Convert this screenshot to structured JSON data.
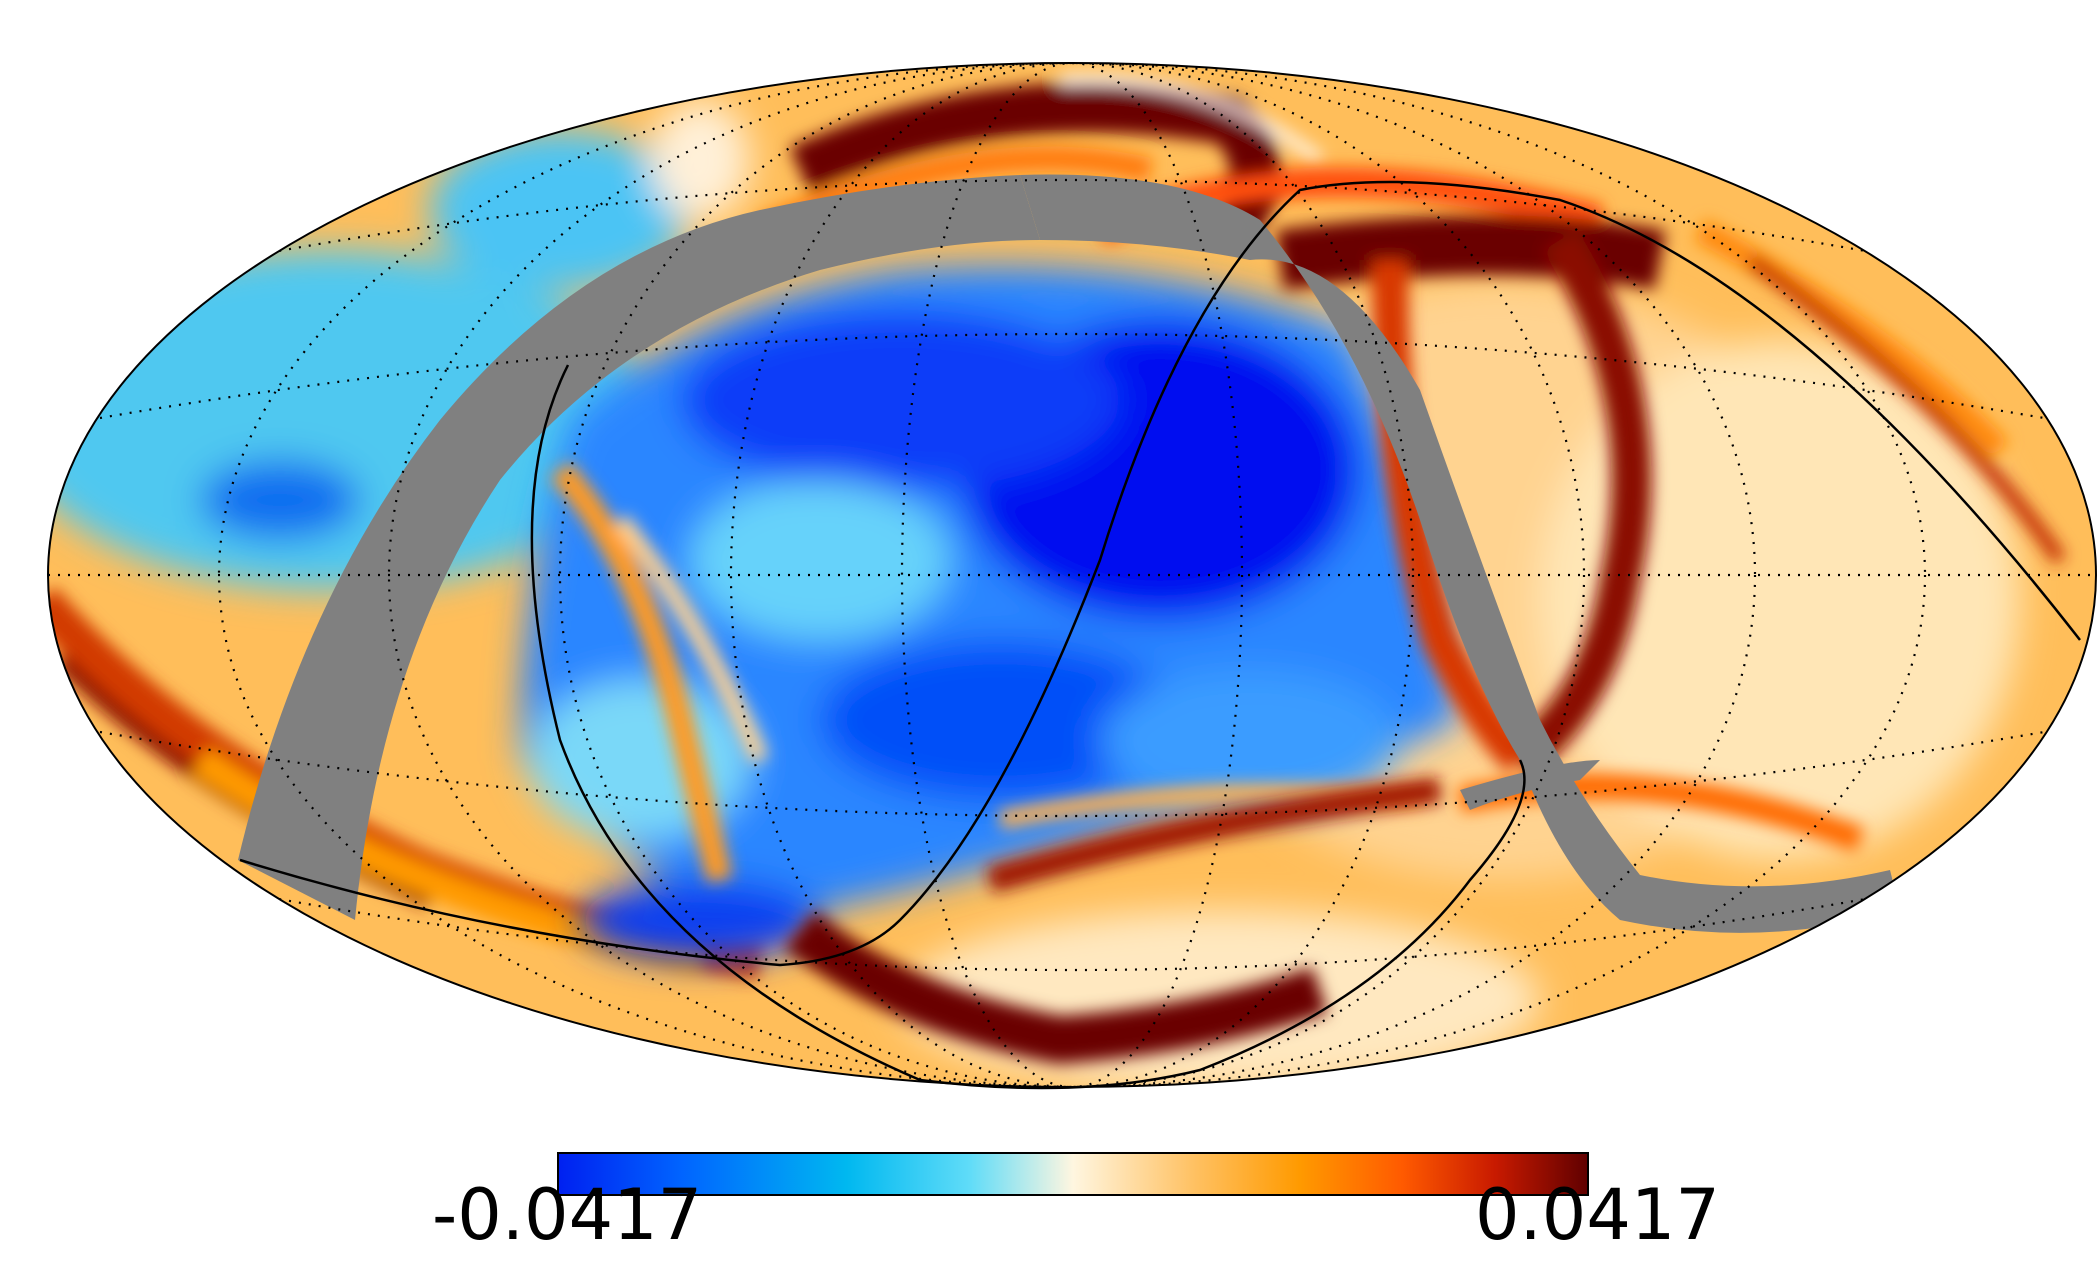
{
  "figure": {
    "projection": "mollweide",
    "colormap": [
      "#0020f0",
      "#0064ff",
      "#00b8f0",
      "#60dcf8",
      "#fff6e0",
      "#ffc060",
      "#ff9a00",
      "#ff5a00",
      "#c81a00",
      "#600000"
    ],
    "mask_color": "#808080",
    "colorbar": {
      "min_label": "-0.0417",
      "max_label": "0.0417"
    }
  }
}
